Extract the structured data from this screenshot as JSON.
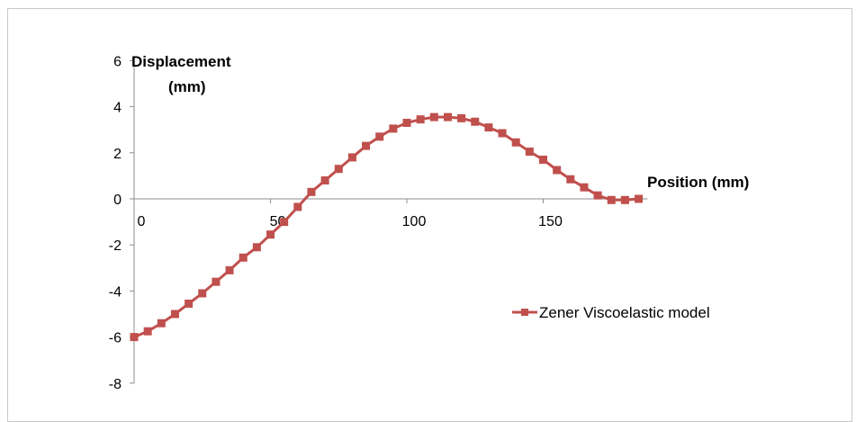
{
  "chart_data": {
    "type": "line",
    "title": "",
    "xlabel": "Position (mm)",
    "ylabel_lines": [
      "Displacement",
      "(mm)"
    ],
    "xlim": [
      0,
      180
    ],
    "ylim": [
      -8,
      6
    ],
    "x_ticks": [
      0,
      50,
      100,
      150
    ],
    "x_tick_labels": [
      "0",
      "50",
      "100",
      "150"
    ],
    "y_ticks": [
      6,
      4,
      2,
      0,
      -2,
      -4,
      -6,
      -8
    ],
    "y_tick_labels": [
      "6",
      "4",
      "2",
      "0",
      "-2",
      "-4",
      "-6",
      "-8"
    ],
    "grid": false,
    "legend_position": "right",
    "series": [
      {
        "name": "Zener Viscoelastic model",
        "color": "#c0504d",
        "marker": "square",
        "x": [
          0,
          5,
          10,
          15,
          20,
          25,
          30,
          35,
          40,
          45,
          50,
          55,
          60,
          65,
          70,
          75,
          80,
          85,
          90,
          95,
          100,
          105,
          110,
          115,
          120,
          125,
          130,
          135,
          140,
          145,
          150,
          155,
          160,
          165,
          170,
          175,
          180
        ],
        "y": [
          -6.0,
          -5.75,
          -5.4,
          -5.0,
          -4.55,
          -4.1,
          -3.6,
          -3.1,
          -2.55,
          -2.1,
          -1.55,
          -1.0,
          -0.35,
          0.3,
          0.8,
          1.3,
          1.8,
          2.3,
          2.7,
          3.05,
          3.3,
          3.45,
          3.55,
          3.55,
          3.5,
          3.35,
          3.1,
          2.85,
          2.45,
          2.05,
          1.7,
          1.25,
          0.85,
          0.5,
          0.15,
          -0.05,
          -0.05
        ]
      }
    ],
    "last_point": {
      "x": 185,
      "y": 0.0
    }
  }
}
